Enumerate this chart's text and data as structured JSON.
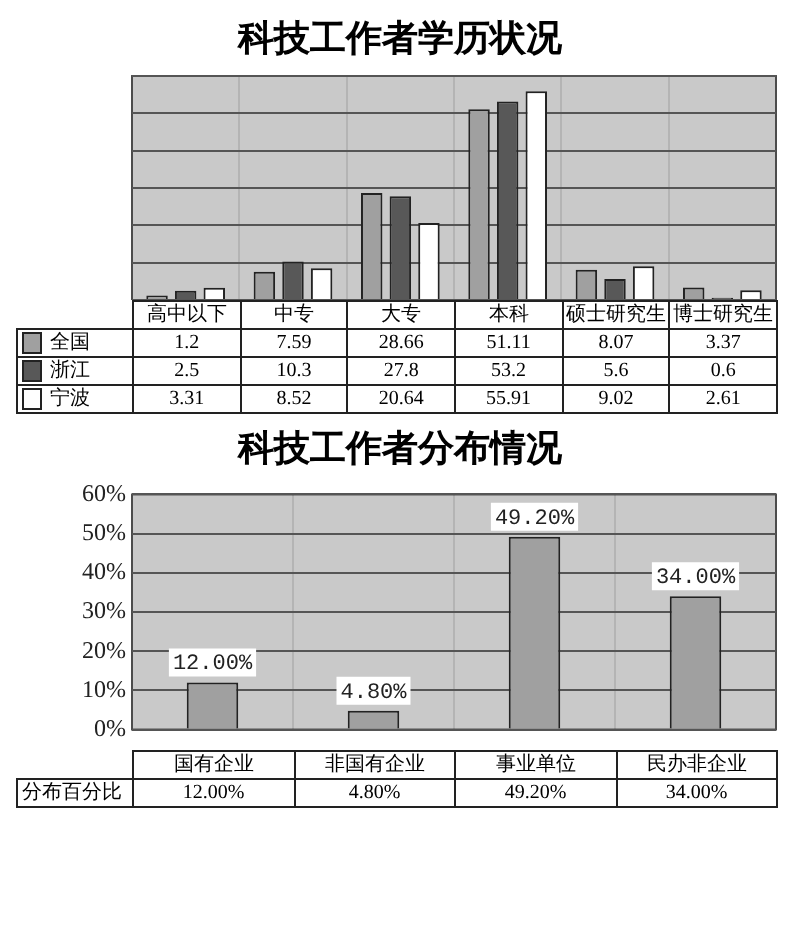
{
  "chart_data": [
    {
      "type": "bar",
      "title": "科技工作者学历状况",
      "categories": [
        "高中以下",
        "中专",
        "大专",
        "本科",
        "硕士研究生",
        "博士研究生"
      ],
      "series": [
        {
          "name": "全国",
          "color": "#a0a0a0",
          "values": [
            1.2,
            7.59,
            28.66,
            51.11,
            8.07,
            3.37
          ]
        },
        {
          "name": "浙江",
          "color": "#585858",
          "values": [
            2.5,
            10.3,
            27.8,
            53.2,
            5.6,
            0.6
          ]
        },
        {
          "name": "宁波",
          "color": "#ffffff",
          "values": [
            3.31,
            8.52,
            20.64,
            55.91,
            9.02,
            2.61
          ]
        }
      ],
      "ylim": [
        0,
        60
      ],
      "yticks": [
        0,
        10,
        20,
        30,
        40,
        50,
        60
      ],
      "tick_labels": "x",
      "grid": true,
      "legend": "bottom",
      "data_labels": true
    },
    {
      "type": "bar",
      "title": "科技工作者分布情况",
      "categories": [
        "国有企业",
        "非国有企业",
        "事业单位",
        "民办非企业"
      ],
      "series": [
        {
          "name": "分布百分比",
          "color": "#a0a0a0",
          "values": [
            12,
            4.8,
            49.2,
            34
          ],
          "value_labels": [
            "12.00%",
            "4.80%",
            "49.20%",
            "34.00%"
          ]
        }
      ],
      "ylim": [
        0,
        60
      ],
      "yticks": [
        {
          "value": 0,
          "label": "0%"
        },
        {
          "value": 10,
          "label": "10%"
        },
        {
          "value": 20,
          "label": "20%"
        },
        {
          "value": 30,
          "label": "30%"
        },
        {
          "value": 40,
          "label": "40%"
        },
        {
          "value": 50,
          "label": "50%"
        },
        {
          "value": 60,
          "label": "60%"
        }
      ],
      "grid": true
    }
  ]
}
